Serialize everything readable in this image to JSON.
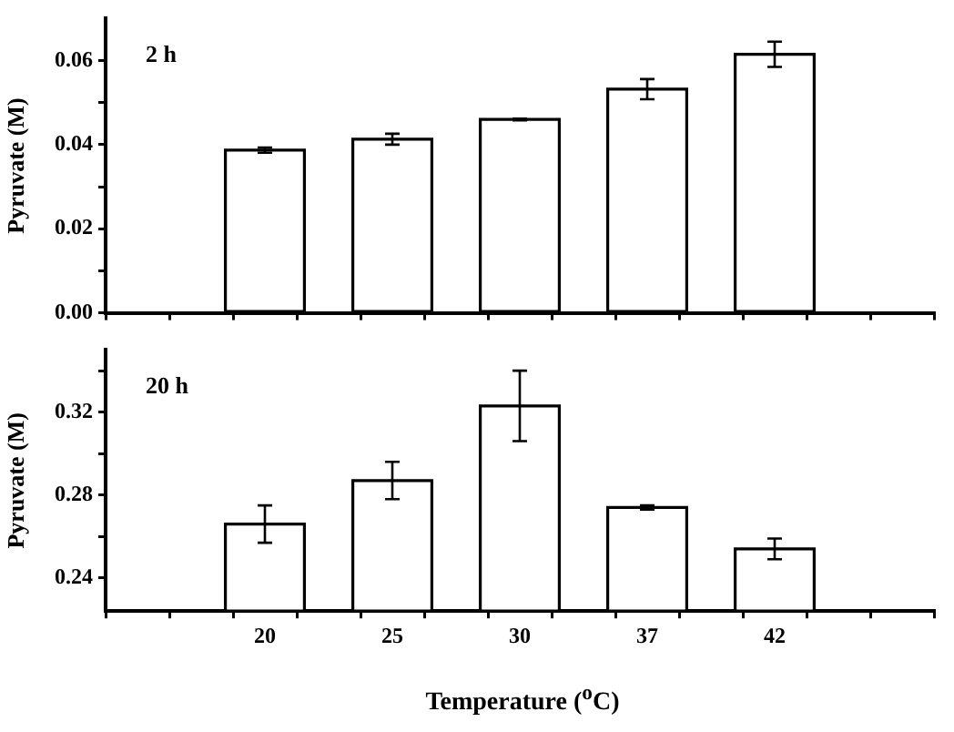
{
  "chart_data": [
    {
      "type": "bar",
      "ylabel": "Pyruvate (M)",
      "annotations": [
        "2 h"
      ],
      "categories": [
        "20",
        "25",
        "30",
        "37",
        "42"
      ],
      "color": "#ffffff",
      "values": [
        0.0387,
        0.0413,
        0.046,
        0.0532,
        0.0615
      ],
      "errors": [
        0.0006,
        0.0013,
        0.0002,
        0.0024,
        0.003
      ],
      "ylim": [
        0,
        0.07
      ],
      "yticks": [
        {
          "value": 0,
          "label": "0.00"
        },
        {
          "value": 0.01,
          "label": null
        },
        {
          "value": 0.02,
          "label": "0.02"
        },
        {
          "value": 0.03,
          "label": null
        },
        {
          "value": 0.04,
          "label": "0.04"
        },
        {
          "value": 0.05,
          "label": null
        },
        {
          "value": 0.06,
          "label": "0.06"
        }
      ],
      "tick_labels": "y",
      "grid": false,
      "legend": false
    },
    {
      "type": "bar",
      "ylabel": "Pyruvate (M)",
      "xlabel": "Temperature ($^{o}$C)",
      "annotations": [
        "20 h"
      ],
      "categories": [
        "20",
        "25",
        "30",
        "37",
        "42"
      ],
      "color": "#ffffff",
      "values": [
        0.266,
        0.287,
        0.323,
        0.274,
        0.254
      ],
      "errors": [
        0.009,
        0.009,
        0.017,
        0.001,
        0.005
      ],
      "ylim": [
        0.224,
        0.35
      ],
      "yticks": [
        0.24,
        {
          "value": 0.26,
          "label": null
        },
        0.28,
        {
          "value": 0.3,
          "label": null
        },
        0.32,
        {
          "value": 0.34,
          "label": null
        }
      ],
      "grid": false,
      "legend": false
    }
  ]
}
